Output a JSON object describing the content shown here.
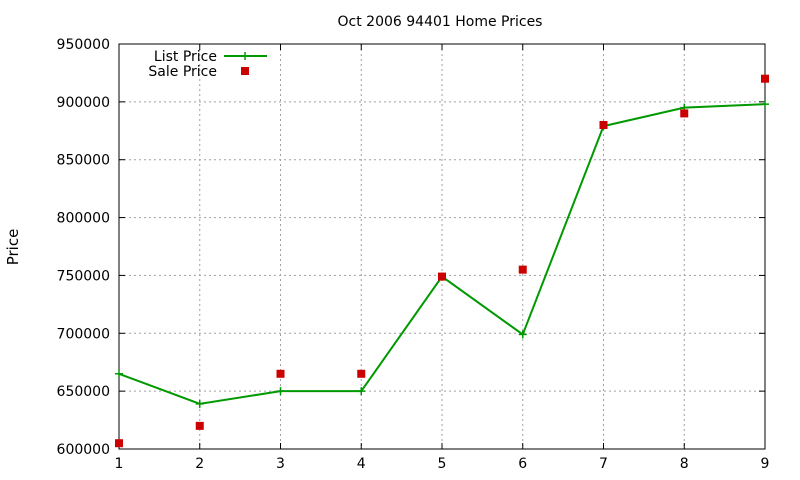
{
  "chart_data": {
    "type": "line",
    "title": "Oct 2006 94401 Home Prices",
    "xlabel": "",
    "ylabel": "Price",
    "xlim": [
      1,
      9
    ],
    "ylim": [
      600000,
      950000
    ],
    "x_ticks": [
      "1",
      "2",
      "3",
      "4",
      "5",
      "6",
      "7",
      "8",
      "9"
    ],
    "y_ticks": [
      "600000",
      "650000",
      "700000",
      "750000",
      "800000",
      "850000",
      "900000",
      "950000"
    ],
    "grid": true,
    "legend_position": "top-left",
    "series": [
      {
        "name": "List Price",
        "style": "line-with-plus-markers",
        "color": "#009900",
        "x": [
          1,
          2,
          3,
          4,
          5,
          6,
          7,
          8,
          9
        ],
        "values": [
          665000,
          639000,
          650000,
          650000,
          749000,
          699000,
          879000,
          895000,
          898000
        ]
      },
      {
        "name": "Sale Price",
        "style": "square-markers",
        "color": "#cc0000",
        "x": [
          1,
          2,
          3,
          4,
          5,
          6,
          7,
          8,
          9
        ],
        "values": [
          605000,
          620000,
          665000,
          665000,
          749000,
          755000,
          880000,
          890000,
          920000
        ]
      }
    ]
  }
}
